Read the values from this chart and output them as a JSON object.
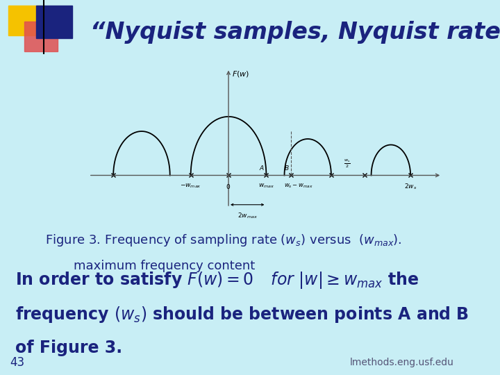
{
  "background_color": "#c8eef5",
  "title": "“Nyquist samples, Nyquist rate”",
  "title_color": "#1a237e",
  "title_fontsize": 24,
  "slide_number": "43",
  "footer_text": "lmethods.eng.usf.edu",
  "caption_line1": "Figure 3. Frequency of sampling rate",
  "caption_ws": " $(w_s)$",
  "caption_versus": " versus",
  "caption_wmax": "  $(w_{max}).$",
  "caption_line2": "maximum frequency content",
  "body_line1a": "In order to satisfy ",
  "body_line1b": "$F(w)=0$",
  "body_line1c": "   $for$  $|w|\\geq w_{max}$",
  "body_line1d": " the",
  "body_line2": "frequency $(\\mathbf{w_s})$ should be between points A and B",
  "body_line3": "of Figure 3.",
  "body_fontsize": 17,
  "caption_fontsize": 13,
  "deco_yellow": "#f5c200",
  "deco_red": "#e05050",
  "deco_blue": "#1a237e",
  "plot_bg": "#ffffff",
  "arch_color": "#000000",
  "axis_color": "#555555"
}
